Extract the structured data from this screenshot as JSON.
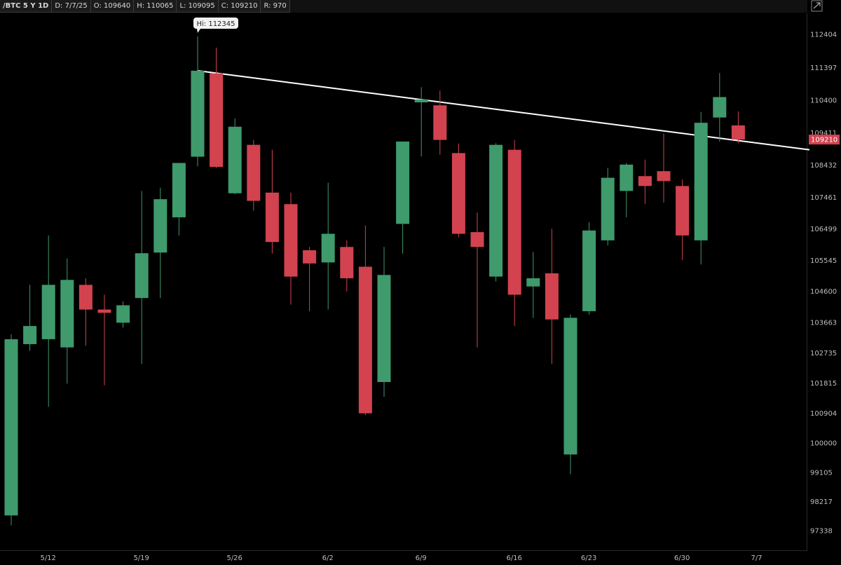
{
  "header": {
    "symbol": "/BTC 5 Y 1D",
    "date": "D: 7/7/25",
    "open": "O: 109640",
    "high": "H: 110065",
    "low": "L: 109095",
    "close": "C: 109210",
    "range": "R: 970"
  },
  "colors": {
    "up": "#3f9a6c",
    "down": "#d2434f",
    "trendline": "#ffffff",
    "last_label_bg": "#d2434f"
  },
  "chart_data": {
    "type": "candlestick",
    "ylim": [
      97000,
      112900
    ],
    "y_ticks": [
      "112404",
      "111397",
      "110400",
      "109411",
      "108432",
      "107461",
      "106499",
      "105545",
      "104600",
      "103663",
      "102735",
      "101815",
      "100904",
      "100000",
      "99105",
      "98217",
      "97338"
    ],
    "x_ticks": [
      {
        "label": "5/12",
        "index": 2
      },
      {
        "label": "5/19",
        "index": 7
      },
      {
        "label": "5/26",
        "index": 12
      },
      {
        "label": "6/2",
        "index": 17
      },
      {
        "label": "6/9",
        "index": 22
      },
      {
        "label": "6/16",
        "index": 27
      },
      {
        "label": "6/23",
        "index": 31
      },
      {
        "label": "6/30",
        "index": 36
      },
      {
        "label": "7/7",
        "index": 40
      }
    ],
    "candles": [
      {
        "o": 97800,
        "h": 103300,
        "l": 97500,
        "c": 103150
      },
      {
        "o": 103000,
        "h": 104800,
        "l": 102800,
        "c": 103550
      },
      {
        "o": 103150,
        "h": 106300,
        "l": 101100,
        "c": 104800
      },
      {
        "o": 102900,
        "h": 105600,
        "l": 101800,
        "c": 104950
      },
      {
        "o": 104800,
        "h": 105000,
        "l": 102950,
        "c": 104050
      },
      {
        "o": 104050,
        "h": 104500,
        "l": 101750,
        "c": 103950
      },
      {
        "o": 103650,
        "h": 104300,
        "l": 103500,
        "c": 104180
      },
      {
        "o": 104400,
        "h": 107650,
        "l": 102400,
        "c": 105760
      },
      {
        "o": 105780,
        "h": 107750,
        "l": 104400,
        "c": 107400
      },
      {
        "o": 106850,
        "h": 108500,
        "l": 106300,
        "c": 108500
      },
      {
        "o": 108690,
        "h": 112345,
        "l": 108400,
        "c": 111300
      },
      {
        "o": 111220,
        "h": 112000,
        "l": 108350,
        "c": 108380
      },
      {
        "o": 107580,
        "h": 109850,
        "l": 107550,
        "c": 109600
      },
      {
        "o": 109050,
        "h": 109200,
        "l": 107050,
        "c": 107350
      },
      {
        "o": 107600,
        "h": 108900,
        "l": 105750,
        "c": 106100
      },
      {
        "o": 107250,
        "h": 107600,
        "l": 104200,
        "c": 105050
      },
      {
        "o": 105850,
        "h": 105950,
        "l": 104000,
        "c": 105450
      },
      {
        "o": 105480,
        "h": 107900,
        "l": 104050,
        "c": 106350
      },
      {
        "o": 105950,
        "h": 106150,
        "l": 104600,
        "c": 105000
      },
      {
        "o": 105350,
        "h": 106600,
        "l": 100850,
        "c": 100900
      },
      {
        "o": 101850,
        "h": 105950,
        "l": 101400,
        "c": 105100
      },
      {
        "o": 106650,
        "h": 109150,
        "l": 105750,
        "c": 109150
      },
      {
        "o": 110340,
        "h": 110800,
        "l": 108700,
        "c": 110430
      },
      {
        "o": 110250,
        "h": 110700,
        "l": 108750,
        "c": 109200
      },
      {
        "o": 108800,
        "h": 109090,
        "l": 106250,
        "c": 106350
      },
      {
        "o": 106400,
        "h": 107000,
        "l": 102900,
        "c": 105950
      },
      {
        "o": 105050,
        "h": 109100,
        "l": 104900,
        "c": 109050
      },
      {
        "o": 108900,
        "h": 109190,
        "l": 103550,
        "c": 104500
      },
      {
        "o": 104750,
        "h": 105800,
        "l": 103800,
        "c": 105000
      },
      {
        "o": 105150,
        "h": 106500,
        "l": 102400,
        "c": 103750
      },
      {
        "o": 99650,
        "h": 103900,
        "l": 99050,
        "c": 103800
      },
      {
        "o": 104000,
        "h": 106700,
        "l": 103900,
        "c": 106450
      },
      {
        "o": 106150,
        "h": 108350,
        "l": 106000,
        "c": 108050
      },
      {
        "o": 107650,
        "h": 108500,
        "l": 106850,
        "c": 108450
      },
      {
        "o": 108100,
        "h": 108600,
        "l": 107250,
        "c": 107800
      },
      {
        "o": 108250,
        "h": 109390,
        "l": 107300,
        "c": 107950
      },
      {
        "o": 107800,
        "h": 108000,
        "l": 105550,
        "c": 106300
      },
      {
        "o": 106150,
        "h": 110050,
        "l": 105420,
        "c": 109720
      },
      {
        "o": 109880,
        "h": 111230,
        "l": 109150,
        "c": 110500
      },
      {
        "o": 109640,
        "h": 110065,
        "l": 109095,
        "c": 109210
      }
    ],
    "annotations": {
      "high_label": "Hi: 112345",
      "last_price_label": "109210"
    },
    "trendline": {
      "from": {
        "index": 10,
        "price": 111300
      },
      "to_price_at_right_edge": 108900
    }
  }
}
